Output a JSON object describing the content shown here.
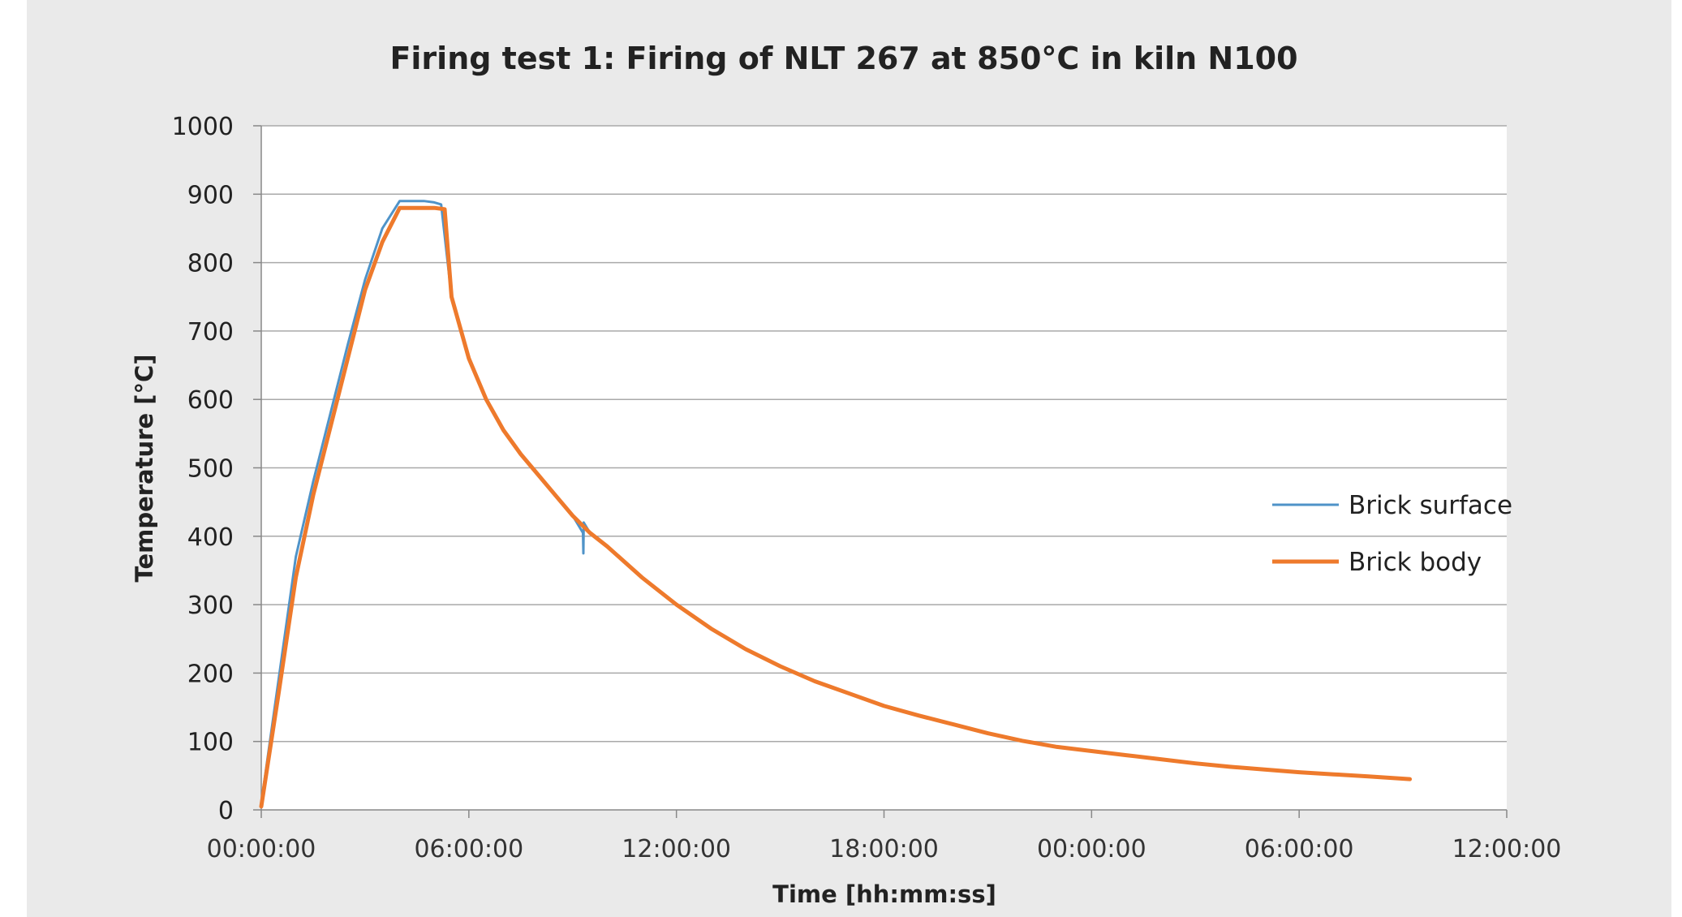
{
  "chart_data": {
    "type": "line",
    "title": "Firing test 1: Firing of NLT 267 at 850°C in kiln N100",
    "xlabel": "Time [hh:mm:ss]",
    "ylabel": "Temperature [°C]",
    "ylim": [
      0,
      1000
    ],
    "y_ticks": [
      "0",
      "100",
      "200",
      "300",
      "400",
      "500",
      "600",
      "700",
      "800",
      "900",
      "1000"
    ],
    "xlim_hours": [
      0,
      36
    ],
    "x_ticks": [
      "00:00:00",
      "06:00:00",
      "12:00:00",
      "18:00:00",
      "00:00:00",
      "06:00:00",
      "12:00:00"
    ],
    "grid": true,
    "legend_position": "right",
    "series": [
      {
        "name": "Brick surface",
        "color": "#4f93c8",
        "x_hours": [
          0,
          0.5,
          1,
          1.5,
          2,
          2.5,
          3,
          3.5,
          4,
          4.2,
          4.7,
          5.0,
          5.2,
          5.5,
          6.0,
          6.5,
          7.0,
          7.5,
          8.0,
          8.5,
          9.0,
          9.3,
          9.31,
          9.32,
          9.5,
          10,
          11,
          12,
          13,
          14,
          15,
          16,
          17,
          18,
          19,
          20,
          21,
          22,
          23,
          24,
          25,
          26,
          27,
          28,
          29,
          30,
          31,
          32,
          33.2
        ],
        "values": [
          10,
          190,
          370,
          480,
          580,
          680,
          775,
          850,
          890,
          890,
          890,
          888,
          885,
          750,
          660,
          600,
          555,
          520,
          490,
          460,
          430,
          405,
          375,
          420,
          405,
          385,
          340,
          300,
          265,
          235,
          210,
          188,
          170,
          152,
          138,
          125,
          112,
          101,
          92,
          86,
          80,
          74,
          68,
          63,
          59,
          55,
          52,
          49,
          45
        ]
      },
      {
        "name": "Brick body",
        "color": "#ee7a2c",
        "x_hours": [
          0,
          0.5,
          1,
          1.5,
          2,
          2.5,
          3,
          3.5,
          4,
          4.3,
          4.7,
          5.0,
          5.3,
          5.5,
          6.0,
          6.5,
          7.0,
          7.5,
          8.0,
          8.5,
          9.0,
          9.5,
          10,
          11,
          12,
          13,
          14,
          15,
          16,
          17,
          18,
          19,
          20,
          21,
          22,
          23,
          24,
          25,
          26,
          27,
          28,
          29,
          30,
          31,
          32,
          33.2
        ],
        "values": [
          5,
          170,
          340,
          460,
          560,
          660,
          760,
          830,
          880,
          880,
          880,
          880,
          878,
          750,
          660,
          600,
          555,
          520,
          490,
          460,
          430,
          405,
          385,
          340,
          300,
          265,
          235,
          210,
          188,
          170,
          152,
          138,
          125,
          112,
          101,
          92,
          86,
          80,
          74,
          68,
          63,
          59,
          55,
          52,
          49,
          45
        ]
      }
    ]
  }
}
